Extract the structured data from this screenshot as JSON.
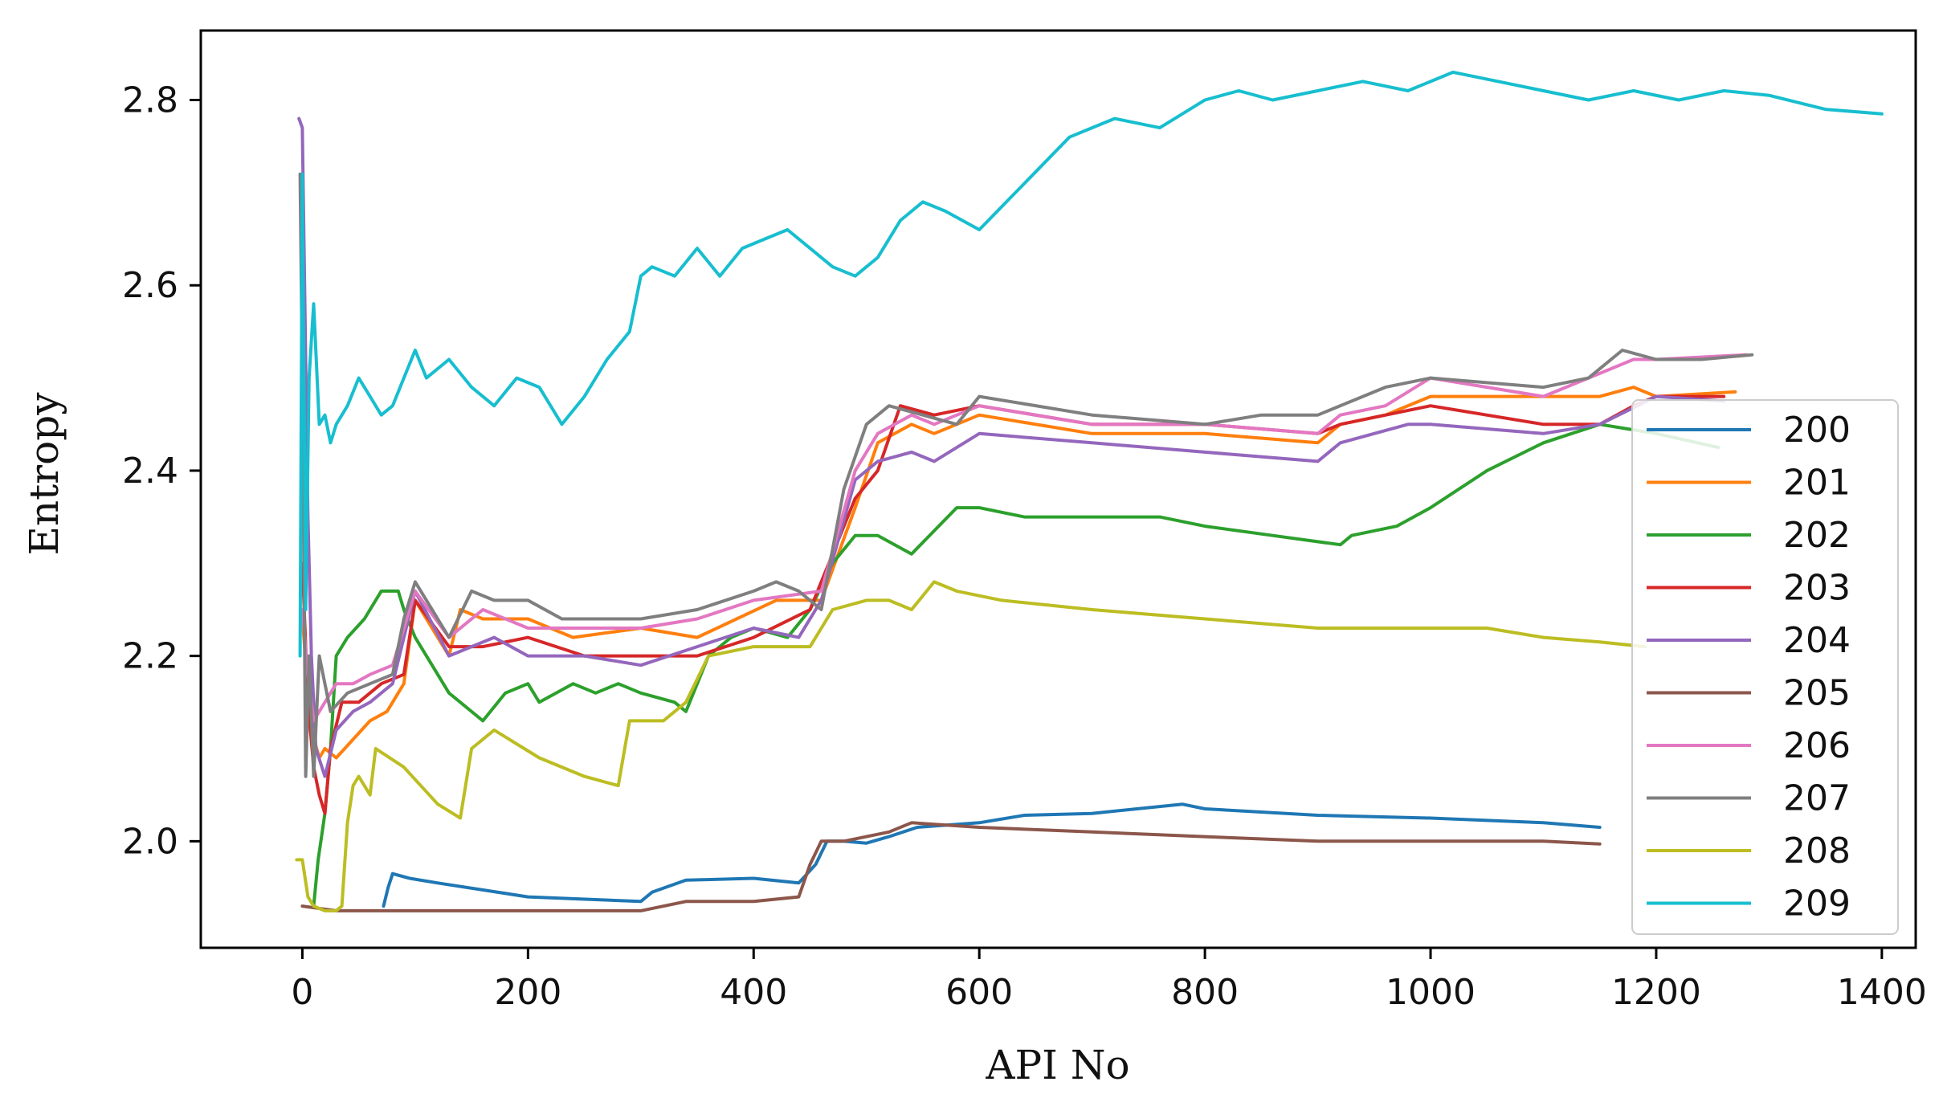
{
  "chart_data": {
    "type": "line",
    "title": "",
    "xlabel": "API No",
    "ylabel": "Entropy",
    "xlim": [
      -90,
      1430
    ],
    "ylim": [
      1.885,
      2.875
    ],
    "xticks": [
      0,
      200,
      400,
      600,
      800,
      1000,
      1200,
      1400
    ],
    "yticks": [
      2.0,
      2.2,
      2.4,
      2.6,
      2.8
    ],
    "xtick_labels": [
      "0",
      "200",
      "400",
      "600",
      "800",
      "1000",
      "1200",
      "1400"
    ],
    "ytick_labels": [
      "2.0",
      "2.2",
      "2.4",
      "2.6",
      "2.8"
    ],
    "grid": false,
    "legend_position": "lower-right",
    "series": [
      {
        "name": "200",
        "color": "#1f77b4",
        "x": [
          72,
          76,
          80,
          95,
          120,
          200,
          300,
          310,
          340,
          400,
          440,
          455,
          465,
          480,
          500,
          520,
          545,
          600,
          640,
          700,
          780,
          800,
          900,
          1000,
          1100,
          1150
        ],
        "y": [
          1.93,
          1.95,
          1.965,
          1.96,
          1.955,
          1.94,
          1.935,
          1.945,
          1.958,
          1.96,
          1.955,
          1.975,
          2.0,
          2.0,
          1.998,
          2.005,
          2.015,
          2.02,
          2.028,
          2.03,
          2.04,
          2.035,
          2.028,
          2.025,
          2.02,
          2.015
        ]
      },
      {
        "name": "201",
        "color": "#ff7f0e",
        "x": [
          0,
          8,
          15,
          20,
          30,
          45,
          60,
          75,
          90,
          100,
          130,
          140,
          160,
          200,
          240,
          300,
          350,
          420,
          460,
          490,
          510,
          540,
          560,
          600,
          700,
          800,
          900,
          920,
          960,
          1000,
          1100,
          1150,
          1180,
          1200,
          1270
        ],
        "y": [
          2.24,
          2.12,
          2.09,
          2.1,
          2.09,
          2.11,
          2.13,
          2.14,
          2.17,
          2.26,
          2.2,
          2.25,
          2.24,
          2.24,
          2.22,
          2.23,
          2.22,
          2.26,
          2.26,
          2.36,
          2.43,
          2.45,
          2.44,
          2.46,
          2.44,
          2.44,
          2.43,
          2.45,
          2.46,
          2.48,
          2.48,
          2.48,
          2.49,
          2.48,
          2.485
        ]
      },
      {
        "name": "202",
        "color": "#2ca02c",
        "x": [
          10,
          14,
          20,
          25,
          30,
          40,
          55,
          70,
          85,
          90,
          100,
          130,
          160,
          180,
          200,
          210,
          240,
          260,
          280,
          300,
          330,
          340,
          360,
          380,
          400,
          430,
          450,
          470,
          490,
          510,
          540,
          580,
          600,
          640,
          700,
          760,
          800,
          860,
          920,
          930,
          970,
          1000,
          1050,
          1100,
          1150,
          1200,
          1255
        ],
        "y": [
          1.93,
          1.98,
          2.03,
          2.1,
          2.2,
          2.22,
          2.24,
          2.27,
          2.27,
          2.25,
          2.22,
          2.16,
          2.13,
          2.16,
          2.17,
          2.15,
          2.17,
          2.16,
          2.17,
          2.16,
          2.15,
          2.14,
          2.2,
          2.22,
          2.23,
          2.22,
          2.25,
          2.3,
          2.33,
          2.33,
          2.31,
          2.36,
          2.36,
          2.35,
          2.35,
          2.35,
          2.34,
          2.33,
          2.32,
          2.33,
          2.34,
          2.36,
          2.4,
          2.43,
          2.45,
          2.44,
          2.425
        ]
      },
      {
        "name": "203",
        "color": "#d62728",
        "x": [
          0,
          5,
          10,
          15,
          20,
          25,
          35,
          50,
          70,
          90,
          100,
          130,
          160,
          200,
          250,
          300,
          350,
          400,
          450,
          470,
          490,
          510,
          530,
          560,
          600,
          700,
          800,
          900,
          920,
          1000,
          1100,
          1150,
          1180,
          1200,
          1260
        ],
        "y": [
          2.3,
          2.15,
          2.08,
          2.05,
          2.03,
          2.1,
          2.15,
          2.15,
          2.17,
          2.18,
          2.26,
          2.21,
          2.21,
          2.22,
          2.2,
          2.2,
          2.2,
          2.22,
          2.25,
          2.31,
          2.37,
          2.4,
          2.47,
          2.46,
          2.47,
          2.45,
          2.45,
          2.44,
          2.45,
          2.47,
          2.45,
          2.45,
          2.47,
          2.48,
          2.48
        ]
      },
      {
        "name": "204",
        "color": "#9467bd",
        "x": [
          -3,
          0,
          5,
          8,
          12,
          20,
          30,
          45,
          60,
          80,
          100,
          130,
          150,
          170,
          200,
          250,
          300,
          350,
          400,
          440,
          460,
          490,
          510,
          540,
          560,
          600,
          700,
          800,
          900,
          920,
          980,
          1000,
          1100,
          1150,
          1200,
          1260
        ],
        "y": [
          2.78,
          2.77,
          2.35,
          2.2,
          2.1,
          2.07,
          2.12,
          2.14,
          2.15,
          2.17,
          2.27,
          2.2,
          2.21,
          2.22,
          2.2,
          2.2,
          2.19,
          2.21,
          2.23,
          2.22,
          2.26,
          2.39,
          2.41,
          2.42,
          2.41,
          2.44,
          2.43,
          2.42,
          2.41,
          2.43,
          2.45,
          2.45,
          2.44,
          2.45,
          2.48,
          2.475
        ]
      },
      {
        "name": "205",
        "color": "#8c564b",
        "x": [
          0,
          30,
          100,
          200,
          300,
          340,
          350,
          400,
          440,
          450,
          460,
          480,
          500,
          520,
          540,
          600,
          700,
          800,
          900,
          1000,
          1100,
          1150
        ],
        "y": [
          1.93,
          1.925,
          1.925,
          1.925,
          1.925,
          1.935,
          1.935,
          1.935,
          1.94,
          1.975,
          2.0,
          2.0,
          2.005,
          2.01,
          2.02,
          2.015,
          2.01,
          2.005,
          2.0,
          2.0,
          2.0,
          1.997
        ]
      },
      {
        "name": "206",
        "color": "#e377c2",
        "x": [
          0,
          5,
          10,
          20,
          30,
          45,
          60,
          80,
          100,
          130,
          160,
          200,
          250,
          300,
          350,
          400,
          460,
          490,
          510,
          540,
          560,
          600,
          700,
          800,
          900,
          920,
          960,
          1000,
          1100,
          1140,
          1180,
          1200,
          1280
        ],
        "y": [
          2.25,
          2.18,
          2.13,
          2.15,
          2.17,
          2.17,
          2.18,
          2.19,
          2.27,
          2.22,
          2.25,
          2.23,
          2.23,
          2.23,
          2.24,
          2.26,
          2.27,
          2.4,
          2.44,
          2.46,
          2.45,
          2.47,
          2.45,
          2.45,
          2.44,
          2.46,
          2.47,
          2.5,
          2.48,
          2.5,
          2.52,
          2.52,
          2.525
        ]
      },
      {
        "name": "207",
        "color": "#7f7f7f",
        "x": [
          -2,
          0,
          3,
          6,
          10,
          15,
          25,
          40,
          60,
          80,
          90,
          100,
          120,
          130,
          150,
          170,
          200,
          230,
          260,
          300,
          350,
          400,
          420,
          440,
          460,
          480,
          500,
          520,
          550,
          580,
          600,
          700,
          800,
          850,
          900,
          960,
          1000,
          1100,
          1140,
          1170,
          1200,
          1240,
          1285
        ],
        "y": [
          2.72,
          2.5,
          2.07,
          2.2,
          2.07,
          2.2,
          2.14,
          2.16,
          2.17,
          2.18,
          2.24,
          2.28,
          2.24,
          2.22,
          2.27,
          2.26,
          2.26,
          2.24,
          2.24,
          2.24,
          2.25,
          2.27,
          2.28,
          2.27,
          2.25,
          2.38,
          2.45,
          2.47,
          2.46,
          2.45,
          2.48,
          2.46,
          2.45,
          2.46,
          2.46,
          2.49,
          2.5,
          2.49,
          2.5,
          2.53,
          2.52,
          2.52,
          2.525
        ]
      },
      {
        "name": "208",
        "color": "#bcbd22",
        "x": [
          -5,
          0,
          5,
          10,
          20,
          30,
          35,
          40,
          45,
          50,
          60,
          65,
          90,
          120,
          140,
          150,
          170,
          210,
          250,
          280,
          290,
          320,
          340,
          360,
          400,
          450,
          470,
          500,
          520,
          540,
          560,
          580,
          620,
          700,
          800,
          900,
          1000,
          1050,
          1100,
          1150,
          1190
        ],
        "y": [
          1.98,
          1.98,
          1.94,
          1.93,
          1.925,
          1.925,
          1.93,
          2.02,
          2.06,
          2.07,
          2.05,
          2.1,
          2.08,
          2.04,
          2.025,
          2.1,
          2.12,
          2.09,
          2.07,
          2.06,
          2.13,
          2.13,
          2.15,
          2.2,
          2.21,
          2.21,
          2.25,
          2.26,
          2.26,
          2.25,
          2.28,
          2.27,
          2.26,
          2.25,
          2.24,
          2.23,
          2.23,
          2.23,
          2.22,
          2.215,
          2.21
        ]
      },
      {
        "name": "209",
        "color": "#17becf",
        "x": [
          -2,
          0,
          3,
          6,
          10,
          15,
          20,
          25,
          30,
          40,
          50,
          60,
          70,
          80,
          90,
          100,
          110,
          130,
          150,
          170,
          190,
          210,
          230,
          250,
          270,
          290,
          300,
          310,
          330,
          350,
          370,
          390,
          410,
          430,
          450,
          470,
          490,
          510,
          530,
          550,
          570,
          600,
          640,
          680,
          700,
          720,
          760,
          800,
          830,
          860,
          900,
          940,
          980,
          1020,
          1060,
          1100,
          1140,
          1180,
          1220,
          1260,
          1300,
          1350,
          1400
        ],
        "y": [
          2.2,
          2.72,
          2.25,
          2.5,
          2.58,
          2.45,
          2.46,
          2.43,
          2.45,
          2.47,
          2.5,
          2.48,
          2.46,
          2.47,
          2.5,
          2.53,
          2.5,
          2.52,
          2.49,
          2.47,
          2.5,
          2.49,
          2.45,
          2.48,
          2.52,
          2.55,
          2.61,
          2.62,
          2.61,
          2.64,
          2.61,
          2.64,
          2.65,
          2.66,
          2.64,
          2.62,
          2.61,
          2.63,
          2.67,
          2.69,
          2.68,
          2.66,
          2.71,
          2.76,
          2.77,
          2.78,
          2.77,
          2.8,
          2.81,
          2.8,
          2.81,
          2.82,
          2.81,
          2.83,
          2.82,
          2.81,
          2.8,
          2.81,
          2.8,
          2.81,
          2.805,
          2.79,
          2.785
        ]
      }
    ]
  }
}
